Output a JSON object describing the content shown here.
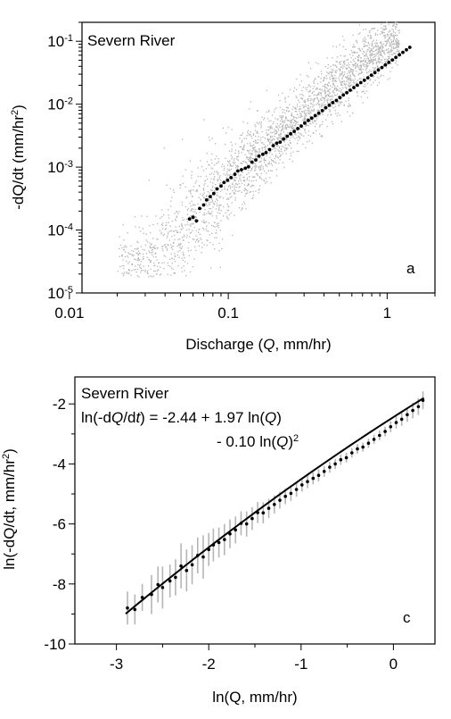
{
  "chart_data": [
    {
      "type": "scatter",
      "panel_label": "a",
      "title": "Severn River",
      "xlabel_prefix": "Discharge (",
      "xlabel_var": "Q",
      "xlabel_suffix": ", mm/hr)",
      "ylabel_main": "-dQ/dt (mm/hr",
      "ylabel_sup": "2",
      "ylabel_close": ")",
      "xscale": "log",
      "yscale": "log",
      "xlim": [
        0.012,
        2.0
      ],
      "ylim": [
        1e-05,
        0.2
      ],
      "x_ticks": [
        {
          "v": 0.01,
          "label": "0.01"
        },
        {
          "v": 0.1,
          "label": "0.1"
        },
        {
          "v": 1,
          "label": "1"
        }
      ],
      "y_ticks": [
        {
          "v": 1e-05,
          "mant": "10",
          "exp": "-5"
        },
        {
          "v": 0.0001,
          "mant": "10",
          "exp": "-4"
        },
        {
          "v": 0.001,
          "mant": "10",
          "exp": "-3"
        },
        {
          "v": 0.01,
          "mant": "10",
          "exp": "-2"
        },
        {
          "v": 0.1,
          "mant": "10",
          "exp": "-1"
        }
      ],
      "series": [
        {
          "role": "raw-recession-points",
          "color": "#b5b5b5",
          "trend": {
            "a": -2.44,
            "b": 1.97,
            "c": -0.1
          },
          "x_range": [
            0.02,
            1.2
          ],
          "count": 2600
        },
        {
          "role": "binned-means",
          "color": "#000000",
          "x": [
            0.057,
            0.06,
            0.063,
            0.066,
            0.07,
            0.073,
            0.077,
            0.081,
            0.085,
            0.09,
            0.094,
            0.099,
            0.104,
            0.11,
            0.115,
            0.121,
            0.128,
            0.134,
            0.141,
            0.149,
            0.156,
            0.165,
            0.173,
            0.182,
            0.192,
            0.202,
            0.212,
            0.223,
            0.235,
            0.247,
            0.26,
            0.274,
            0.288,
            0.303,
            0.319,
            0.335,
            0.353,
            0.371,
            0.391,
            0.411,
            0.432,
            0.455,
            0.479,
            0.504,
            0.53,
            0.557,
            0.586,
            0.617,
            0.649,
            0.683,
            0.719,
            0.756,
            0.796,
            0.837,
            0.881,
            0.927,
            0.975,
            1.026,
            1.079,
            1.135,
            1.194,
            1.256,
            1.322,
            1.39
          ],
          "y": [
            0.00015,
            0.00016,
            0.00014,
            0.00022,
            0.00025,
            0.0003,
            0.00034,
            0.00038,
            0.00045,
            0.0005,
            0.00057,
            0.00062,
            0.00068,
            0.00077,
            0.00087,
            0.00091,
            0.00096,
            0.00101,
            0.0012,
            0.0013,
            0.0015,
            0.0016,
            0.0017,
            0.0019,
            0.0022,
            0.0024,
            0.0025,
            0.0028,
            0.0031,
            0.0034,
            0.0037,
            0.0041,
            0.0045,
            0.005,
            0.0055,
            0.006,
            0.0066,
            0.0072,
            0.0079,
            0.0088,
            0.0096,
            0.0106,
            0.0115,
            0.0127,
            0.014,
            0.0152,
            0.0167,
            0.0184,
            0.02,
            0.022,
            0.024,
            0.0263,
            0.029,
            0.0318,
            0.0349,
            0.0383,
            0.042,
            0.0461,
            0.0505,
            0.0554,
            0.0608,
            0.0667,
            0.0732,
            0.08
          ]
        }
      ]
    },
    {
      "type": "scatter",
      "panel_label": "c",
      "title": "Severn River",
      "equation_line1_a": "ln(-d",
      "equation_line1_var1": "Q",
      "equation_line1_b": "/d",
      "equation_line1_var2": "t",
      "equation_line1_c": ") = -2.44 + 1.97 ln(",
      "equation_line1_var3": "Q",
      "equation_line1_d": ")",
      "equation_line2_a": "- 0.10 ln(",
      "equation_line2_var": "Q",
      "equation_line2_b": ")",
      "equation_line2_sup": "2",
      "xlabel": "ln(Q, mm/hr)",
      "ylabel_main": "ln(-dQ/dt, mm/hr",
      "ylabel_sup": "2",
      "ylabel_close": ")",
      "xlim": [
        -3.45,
        0.45
      ],
      "ylim": [
        -10,
        -1.1
      ],
      "x_ticks": [
        -3,
        -2,
        -1,
        0
      ],
      "y_ticks": [
        -10,
        -8,
        -6,
        -4,
        -2
      ],
      "fit": {
        "a": -2.44,
        "b": 1.97,
        "c": -0.1,
        "x_range": [
          -2.9,
          0.33
        ],
        "color": "#000000"
      },
      "points": {
        "color": "#000000",
        "errorbar_color": "#b5b5b5",
        "x": [
          -2.88,
          -2.8,
          -2.72,
          -2.62,
          -2.55,
          -2.5,
          -2.42,
          -2.36,
          -2.3,
          -2.24,
          -2.18,
          -2.12,
          -2.06,
          -2.0,
          -1.95,
          -1.89,
          -1.83,
          -1.77,
          -1.71,
          -1.65,
          -1.59,
          -1.53,
          -1.47,
          -1.41,
          -1.35,
          -1.29,
          -1.23,
          -1.17,
          -1.11,
          -1.05,
          -0.99,
          -0.93,
          -0.87,
          -0.81,
          -0.75,
          -0.69,
          -0.63,
          -0.57,
          -0.51,
          -0.45,
          -0.39,
          -0.33,
          -0.27,
          -0.21,
          -0.15,
          -0.09,
          -0.03,
          0.03,
          0.09,
          0.15,
          0.21,
          0.27,
          0.32
        ],
        "y": [
          -8.8,
          -8.85,
          -8.45,
          -8.35,
          -8.02,
          -8.12,
          -7.9,
          -7.78,
          -7.4,
          -7.55,
          -7.36,
          -7.05,
          -7.1,
          -6.85,
          -6.7,
          -6.62,
          -6.52,
          -6.33,
          -6.2,
          -5.98,
          -6.0,
          -5.82,
          -5.62,
          -5.63,
          -5.48,
          -5.35,
          -5.21,
          -5.08,
          -4.98,
          -4.85,
          -4.7,
          -4.59,
          -4.48,
          -4.38,
          -4.25,
          -4.11,
          -4.0,
          -3.86,
          -3.79,
          -3.63,
          -3.5,
          -3.44,
          -3.31,
          -3.18,
          -3.05,
          -2.92,
          -2.76,
          -2.62,
          -2.51,
          -2.36,
          -2.22,
          -2.09,
          -1.88
        ],
        "errors": [
          0.55,
          0.5,
          0.45,
          0.65,
          0.6,
          0.7,
          0.55,
          0.6,
          0.75,
          0.7,
          0.65,
          0.6,
          0.72,
          0.55,
          0.55,
          0.5,
          0.52,
          0.48,
          0.45,
          0.4,
          0.42,
          0.38,
          0.35,
          0.35,
          0.32,
          0.3,
          0.28,
          0.26,
          0.25,
          0.24,
          0.22,
          0.22,
          0.2,
          0.2,
          0.18,
          0.18,
          0.17,
          0.17,
          0.16,
          0.16,
          0.16,
          0.15,
          0.15,
          0.15,
          0.16,
          0.16,
          0.18,
          0.2,
          0.22,
          0.24,
          0.26,
          0.28,
          0.3
        ]
      }
    }
  ]
}
